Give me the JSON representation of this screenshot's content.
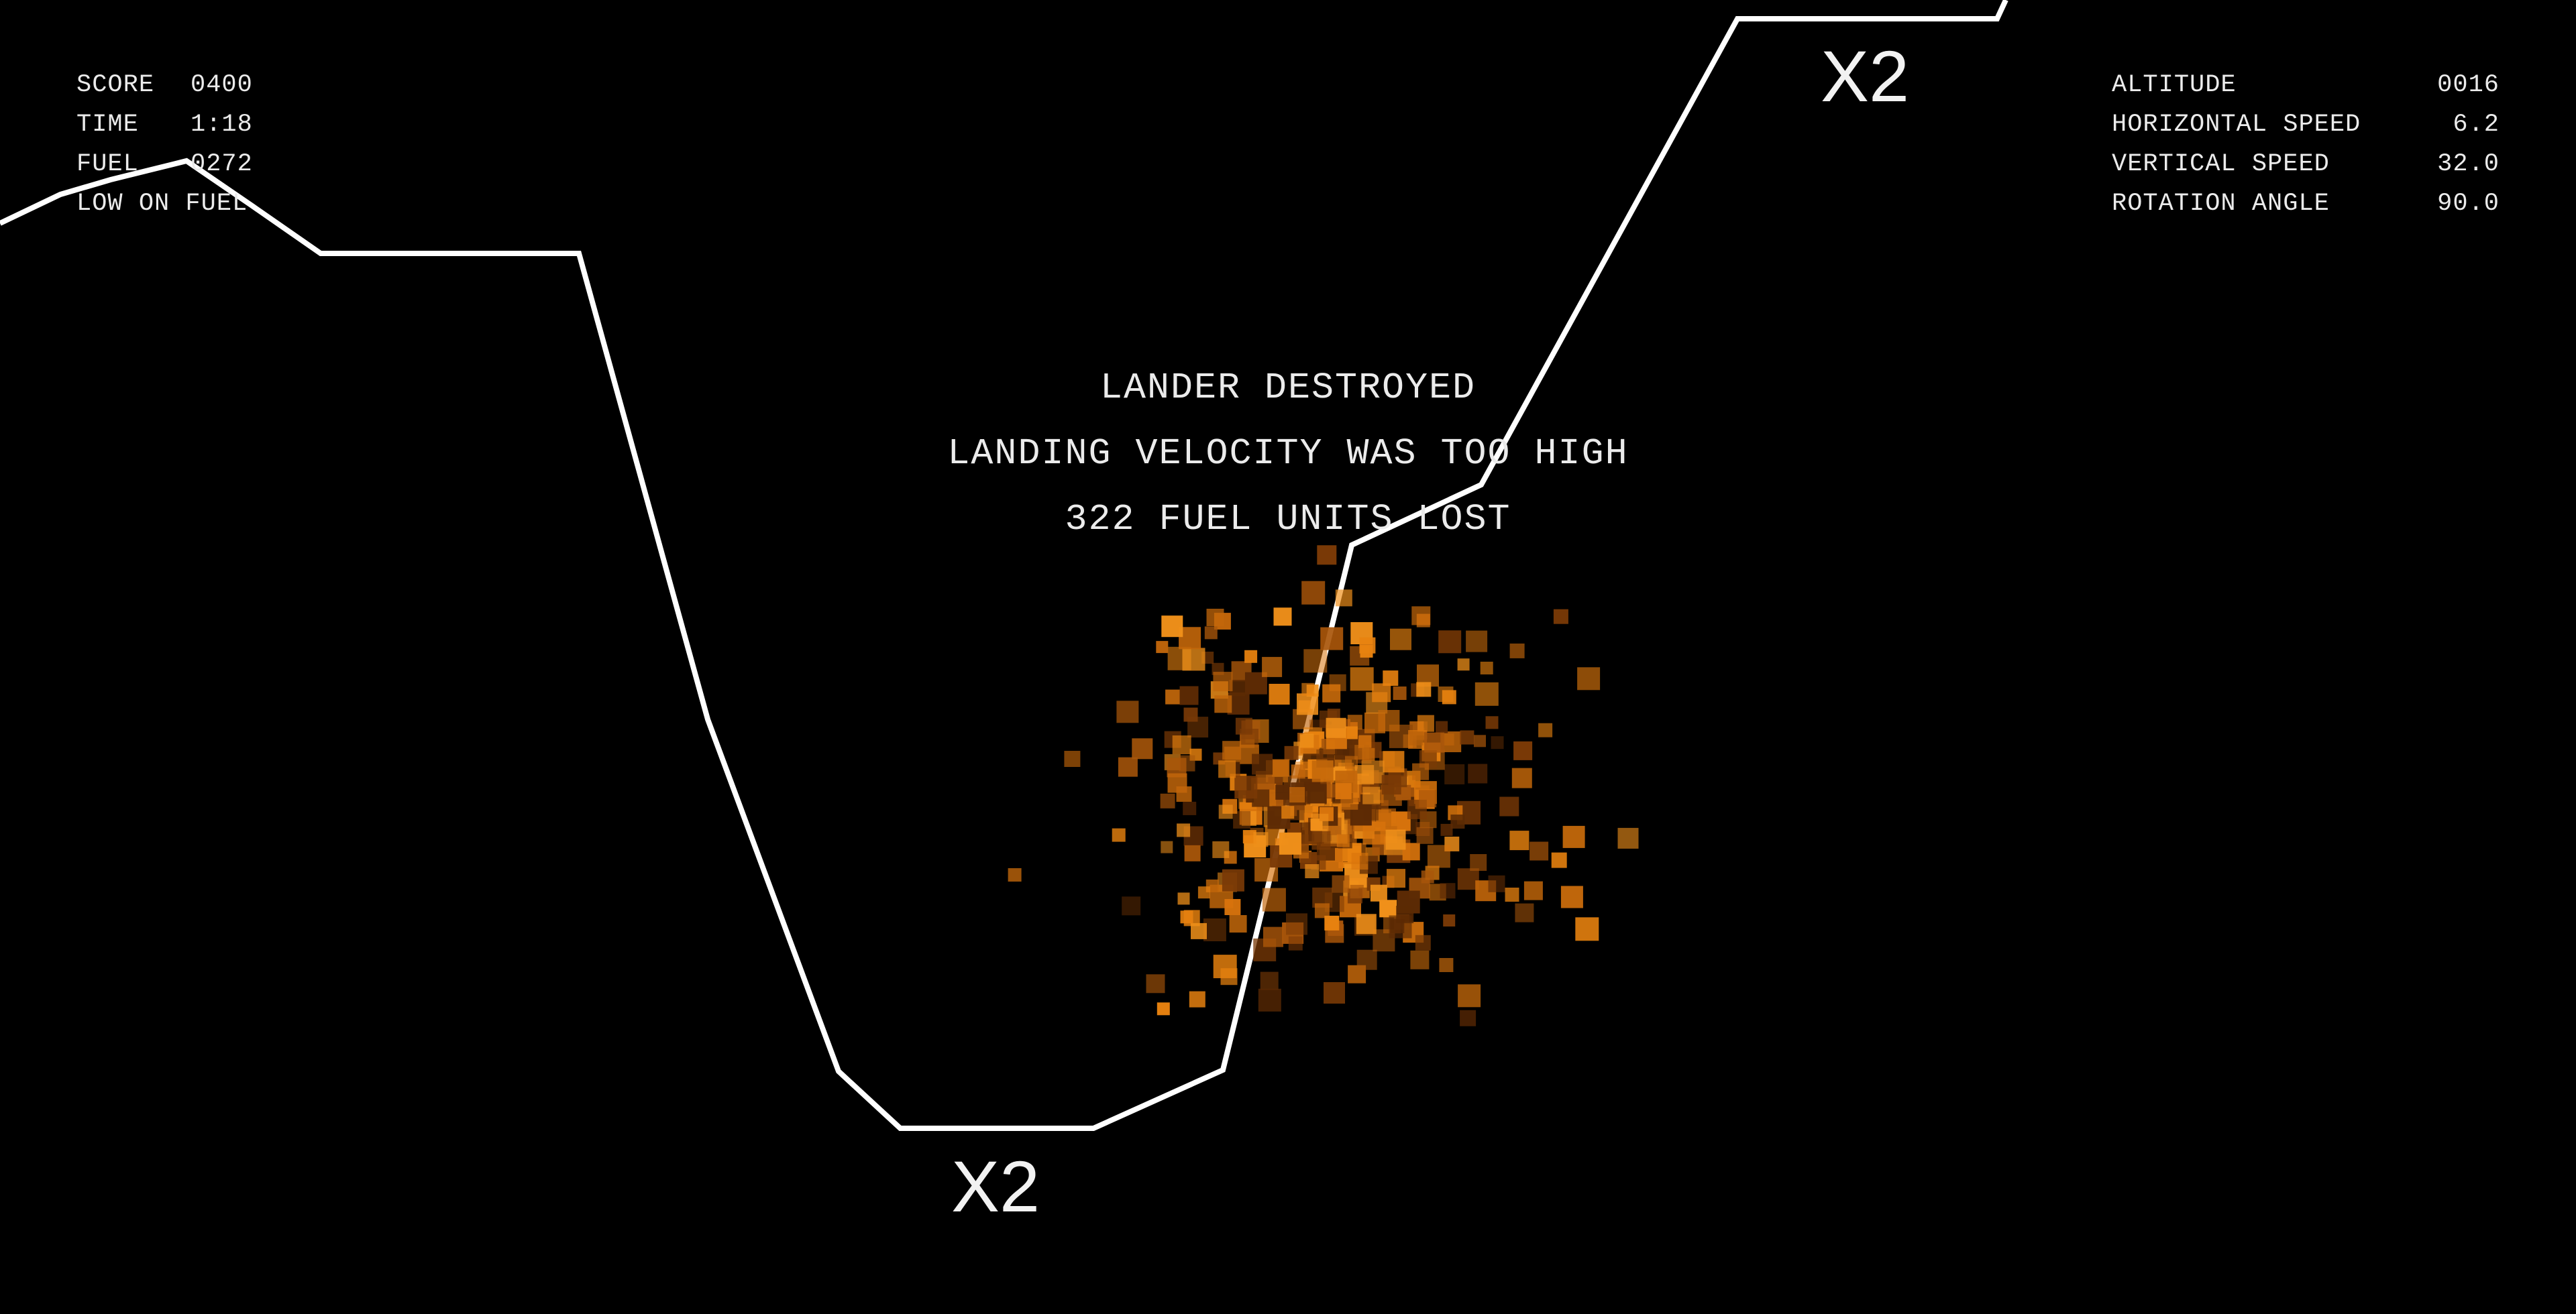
{
  "hud_left": {
    "rows": [
      {
        "label": "SCORE",
        "value": "0400"
      },
      {
        "label": "TIME",
        "value": "1:18"
      },
      {
        "label": "FUEL",
        "value": "0272"
      }
    ],
    "warning": "LOW ON FUEL"
  },
  "hud_right": {
    "rows": [
      {
        "label": "ALTITUDE",
        "value": "0016"
      },
      {
        "label": "HORIZONTAL SPEED",
        "value": "6.2"
      },
      {
        "label": "VERTICAL SPEED",
        "value": "32.0"
      },
      {
        "label": "ROTATION ANGLE",
        "value": "90.0"
      }
    ]
  },
  "message": {
    "line1": "LANDER DESTROYED",
    "line2": "LANDING VELOCITY WAS TOO HIGH",
    "line3": "322 FUEL UNITS LOST"
  },
  "multipliers": {
    "top": "X2",
    "bottom": "X2"
  },
  "colors": {
    "background": "#000000",
    "terrain": "#ffffff",
    "debris": "#e8820f",
    "text": "#ebebeb"
  }
}
